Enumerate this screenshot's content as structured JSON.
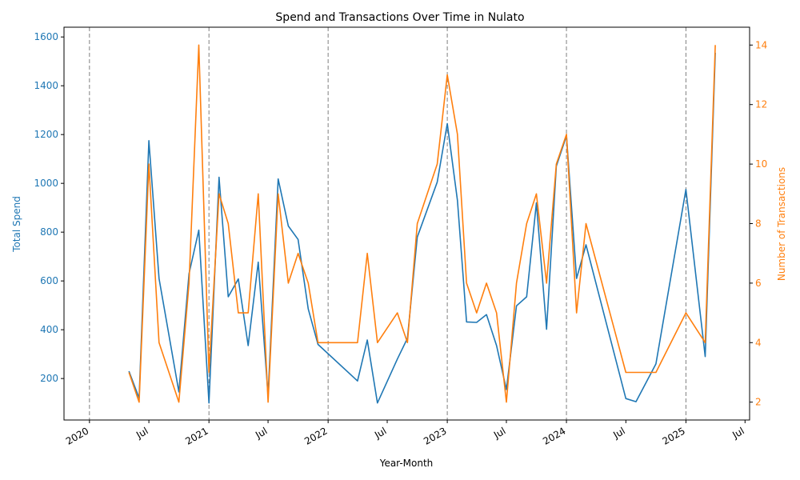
{
  "chart_data": {
    "type": "line",
    "title": "Spend and Transactions Over Time in Nulato",
    "xlabel": "Year-Month",
    "ylabel_left": "Total Spend",
    "ylabel_right": "Number of Transactions",
    "x_ticks": [
      {
        "date": "2020-01-01",
        "label": "2020"
      },
      {
        "date": "2020-07-01",
        "label": "Jul"
      },
      {
        "date": "2021-01-01",
        "label": "2021"
      },
      {
        "date": "2021-07-01",
        "label": "Jul"
      },
      {
        "date": "2022-01-01",
        "label": "2022"
      },
      {
        "date": "2022-07-01",
        "label": "Jul"
      },
      {
        "date": "2023-01-01",
        "label": "2023"
      },
      {
        "date": "2023-07-01",
        "label": "Jul"
      },
      {
        "date": "2024-01-01",
        "label": "2024"
      },
      {
        "date": "2024-07-01",
        "label": "Jul"
      },
      {
        "date": "2025-01-01",
        "label": "2025"
      },
      {
        "date": "2025-07-01",
        "label": "Jul"
      }
    ],
    "year_lines": [
      "2020-01-01",
      "2021-01-01",
      "2022-01-01",
      "2023-01-01",
      "2024-01-01",
      "2025-01-01"
    ],
    "xlim": [
      "2019-10-15",
      "2025-07-15"
    ],
    "ylim_left": [
      30,
      1640
    ],
    "ylim_right": [
      1.4,
      14.6
    ],
    "yticks_left": [
      200,
      400,
      600,
      800,
      1000,
      1200,
      1400,
      1600
    ],
    "yticks_right": [
      2,
      4,
      6,
      8,
      10,
      12,
      14
    ],
    "colors": {
      "spend": "#1f77b4",
      "transactions": "#ff7f0e",
      "year_line": "#808080"
    },
    "dates": [
      "2020-05-01",
      "2020-06-01",
      "2020-07-01",
      "2020-08-01",
      "2020-10-01",
      "2020-11-01",
      "2020-12-01",
      "2021-01-01",
      "2021-02-01",
      "2021-03-01",
      "2021-04-01",
      "2021-05-01",
      "2021-06-01",
      "2021-07-01",
      "2021-08-01",
      "2021-09-01",
      "2021-10-01",
      "2021-11-01",
      "2021-12-01",
      "2022-04-01",
      "2022-05-01",
      "2022-06-01",
      "2022-08-01",
      "2022-09-01",
      "2022-10-01",
      "2022-12-01",
      "2023-01-01",
      "2023-02-01",
      "2023-03-01",
      "2023-04-01",
      "2023-05-01",
      "2023-06-01",
      "2023-07-01",
      "2023-08-01",
      "2023-09-01",
      "2023-10-01",
      "2023-11-01",
      "2023-12-01",
      "2024-01-01",
      "2024-02-01",
      "2024-03-01",
      "2024-07-01",
      "2024-08-01",
      "2024-10-01",
      "2025-01-01",
      "2025-03-01",
      "2025-04-01"
    ],
    "series": [
      {
        "name": "Total Spend",
        "axis": "left",
        "values": [
          230,
          120,
          1175,
          610,
          145,
          630,
          808,
          100,
          1025,
          535,
          608,
          335,
          677,
          130,
          1018,
          825,
          770,
          485,
          340,
          190,
          358,
          100,
          280,
          365,
          780,
          1005,
          1245,
          930,
          432,
          430,
          462,
          335,
          155,
          498,
          535,
          920,
          402,
          1070,
          1195,
          610,
          748,
          118,
          105,
          260,
          975,
          290,
          1535
        ]
      },
      {
        "name": "Number of Transactions",
        "axis": "right",
        "values": [
          3,
          2,
          10,
          4,
          2,
          6,
          14,
          3,
          9,
          8,
          5,
          5,
          9,
          2,
          9,
          6,
          7,
          6,
          4,
          4,
          7,
          4,
          5,
          4,
          8,
          10,
          13,
          11,
          6,
          5,
          6,
          5,
          2,
          6,
          8,
          9,
          6,
          10,
          11,
          5,
          8,
          3,
          3,
          3,
          5,
          4,
          14
        ]
      }
    ]
  }
}
